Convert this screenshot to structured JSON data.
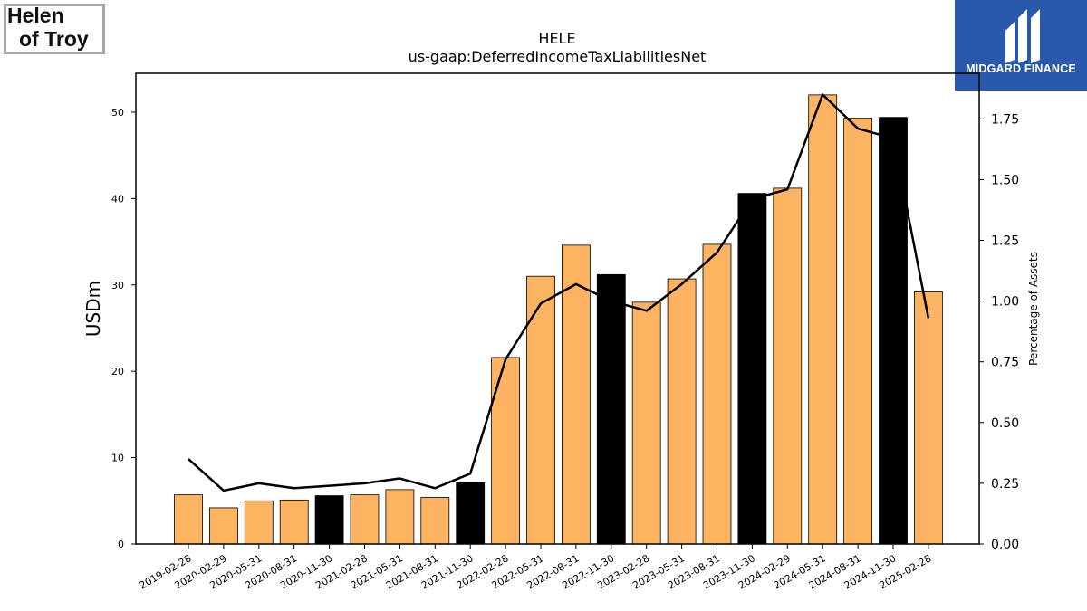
{
  "logos": {
    "left": {
      "line1": "Helen",
      "line2": "of Troy"
    },
    "right": {
      "text": "MIDGARD FINANCE",
      "bg_color": "#2a58aa",
      "icon": "midgard-logo-icon"
    }
  },
  "chart_data": {
    "type": "bar",
    "title": "HELE",
    "subtitle": "us-gaap:DeferredIncomeTaxLiabilitiesNet",
    "ylabel": "USDm",
    "y2label": "Percentage of Assets",
    "ylim": [
      0,
      54.5
    ],
    "y2lim": [
      0,
      1.9375
    ],
    "yticks": [
      0,
      10,
      20,
      30,
      40,
      50
    ],
    "y2ticks": [
      "0.00",
      "0.25",
      "0.50",
      "0.75",
      "1.00",
      "1.25",
      "1.50",
      "1.75"
    ],
    "grid": false,
    "categories": [
      "2019-02-28",
      "2020-02-29",
      "2020-05-31",
      "2020-08-31",
      "2020-11-30",
      "2021-02-28",
      "2021-05-31",
      "2021-08-31",
      "2021-11-30",
      "2022-02-28",
      "2022-05-31",
      "2022-08-31",
      "2022-11-30",
      "2023-02-28",
      "2023-05-31",
      "2023-08-31",
      "2023-11-30",
      "2024-02-29",
      "2024-05-31",
      "2024-08-31",
      "2024-11-30",
      "2025-02-28"
    ],
    "series": [
      {
        "type": "bar",
        "values": [
          5.7,
          4.2,
          5.0,
          5.1,
          5.6,
          5.7,
          6.3,
          5.4,
          7.1,
          21.6,
          31.0,
          34.6,
          31.2,
          28.0,
          30.7,
          34.7,
          40.6,
          41.2,
          52.0,
          49.3,
          49.4,
          29.2
        ],
        "highlight": [
          false,
          false,
          false,
          false,
          true,
          false,
          false,
          false,
          true,
          false,
          false,
          false,
          true,
          false,
          false,
          false,
          true,
          false,
          false,
          false,
          true,
          false
        ]
      },
      {
        "type": "line",
        "axis": "right",
        "values": [
          0.35,
          0.22,
          0.25,
          0.23,
          0.24,
          0.25,
          0.27,
          0.23,
          0.29,
          0.76,
          0.99,
          1.07,
          1.0,
          0.96,
          1.07,
          1.2,
          1.42,
          1.46,
          1.85,
          1.71,
          1.67,
          0.93
        ]
      }
    ],
    "colors": {
      "bar": "#fdb462",
      "bar_highlight": "#000000",
      "line": "#000000"
    }
  }
}
